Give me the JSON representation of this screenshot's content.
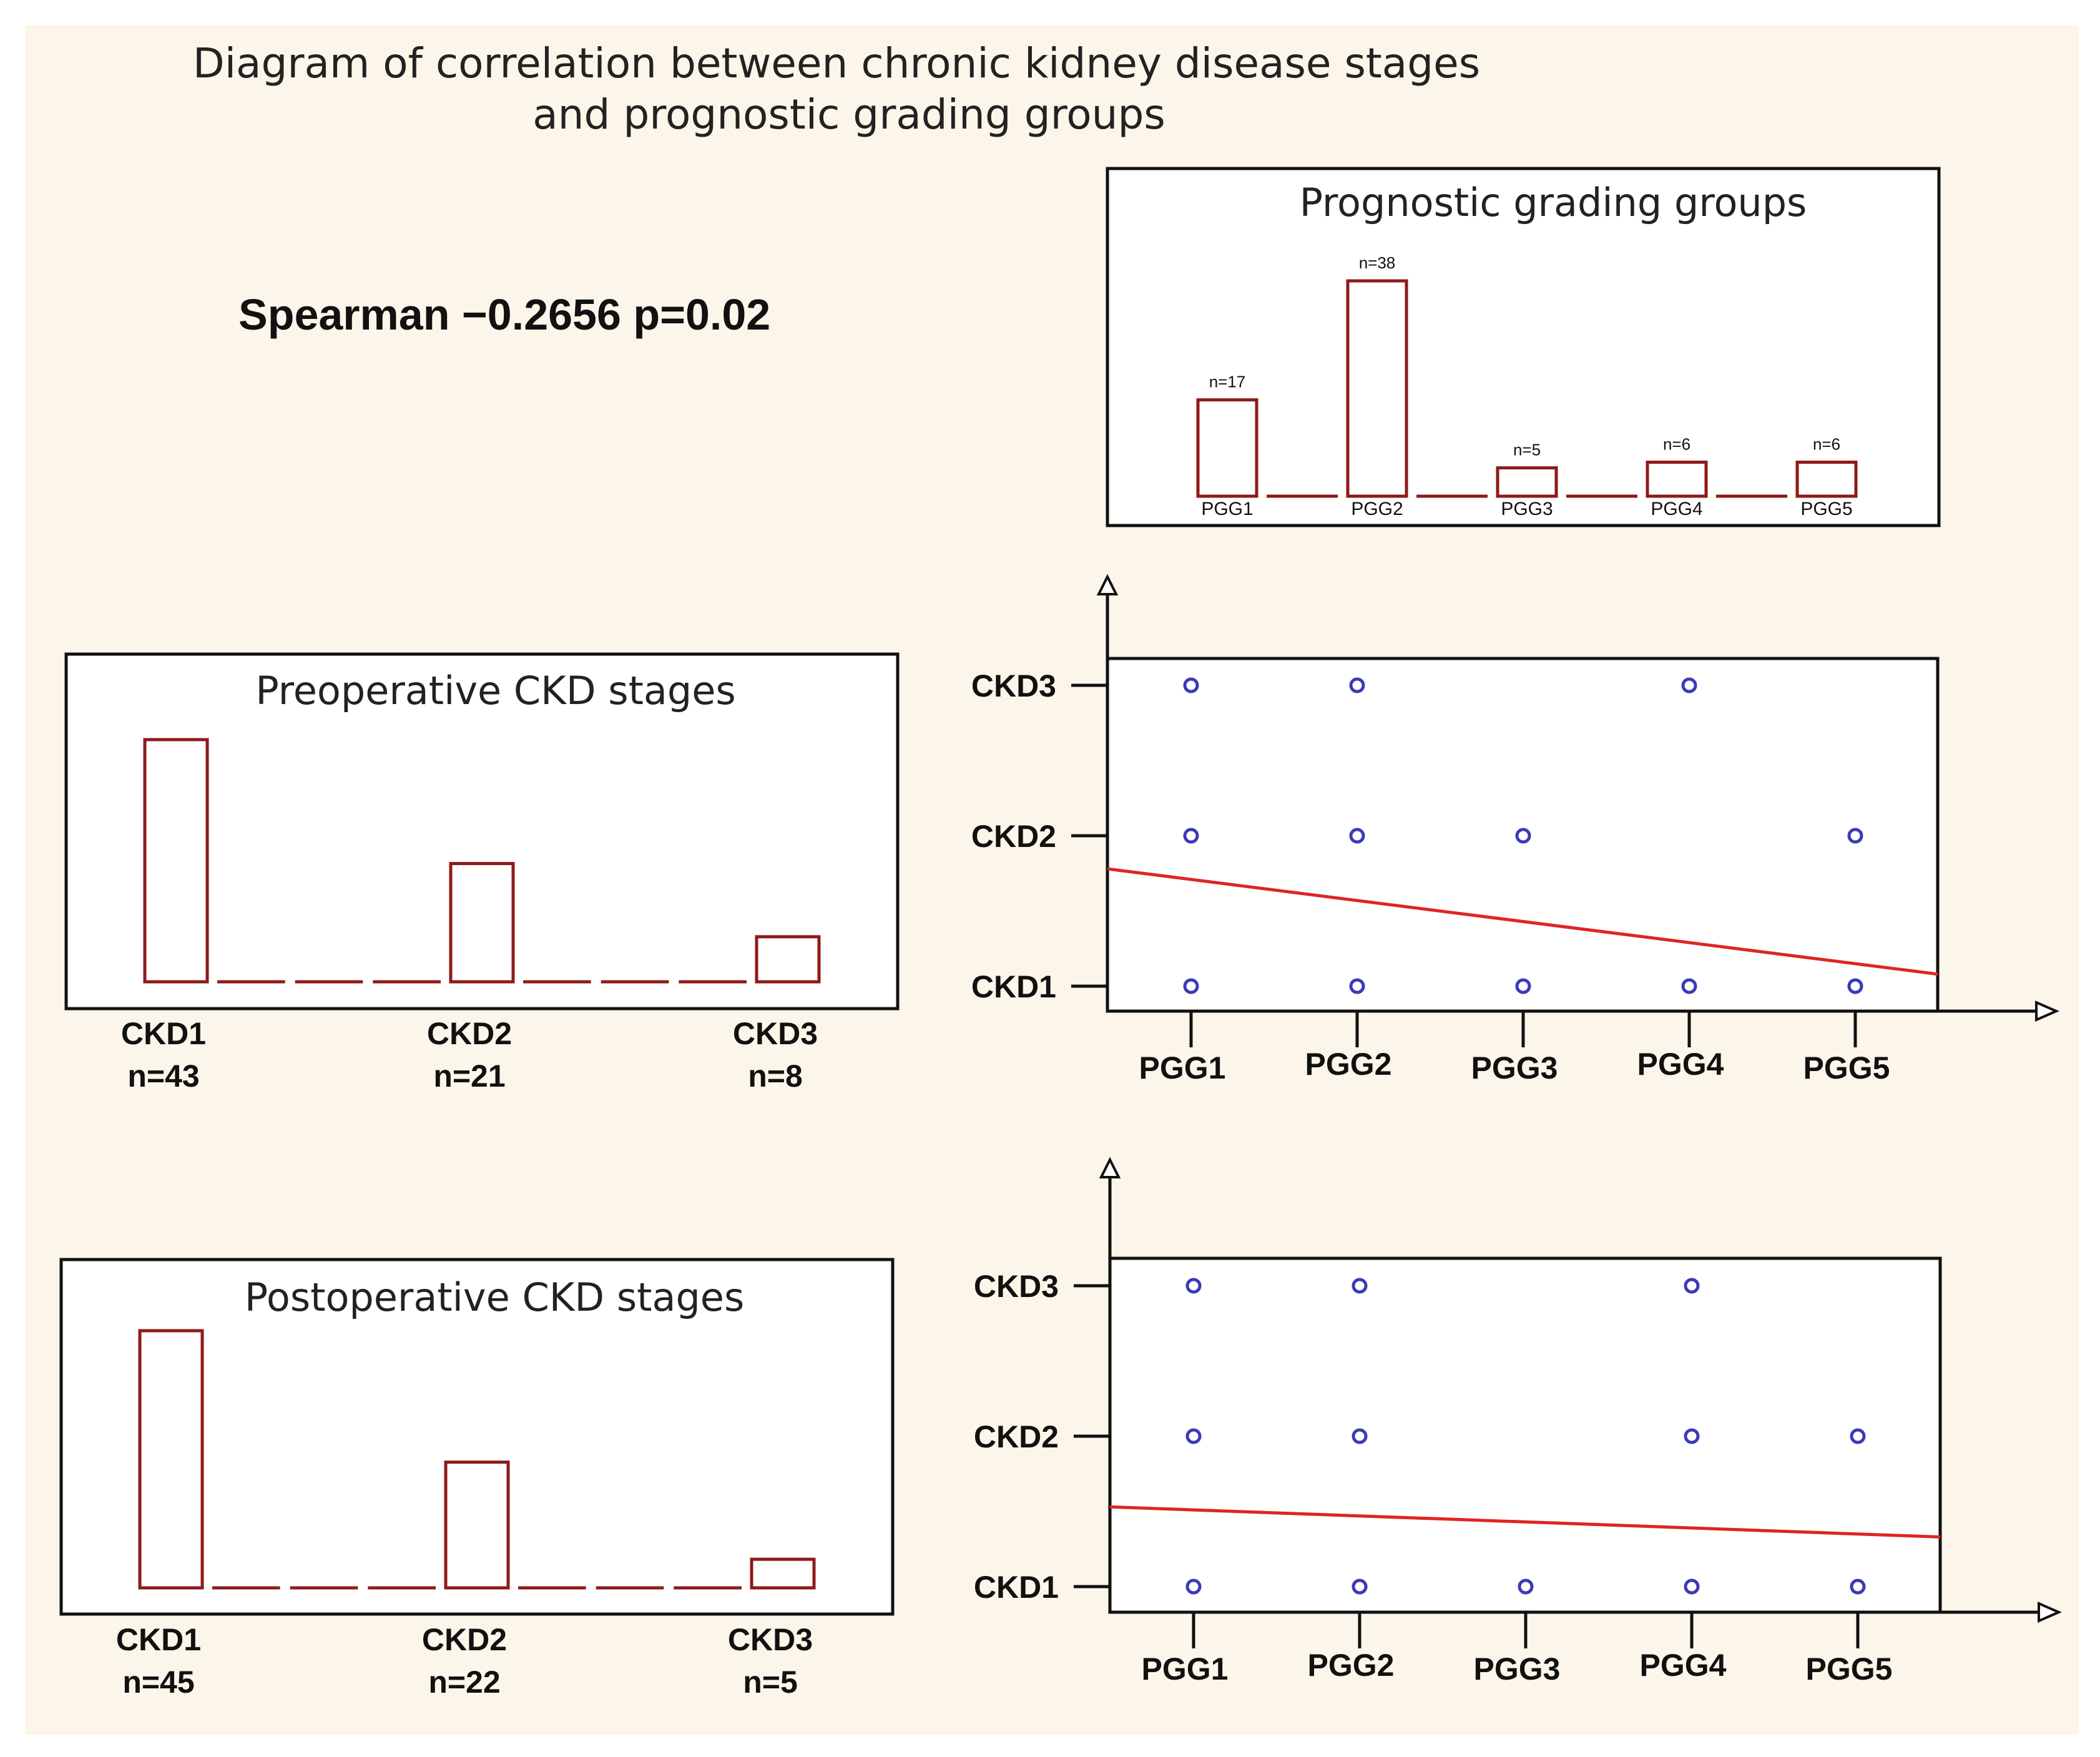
{
  "title_line1": "Diagram of correlation between chronic kidney disease stages",
  "title_line2": "and prognostic grading groups",
  "stat_text": "Spearman −0.2656 p=0.02",
  "colors": {
    "background": "#fbf6e9",
    "panel": "#ffffff",
    "bar": "#8e1a1a",
    "point": "#3a3ab8",
    "trend": "#e02424",
    "axis": "#111111"
  },
  "chart_data": [
    {
      "id": "pgg",
      "type": "bar",
      "title": "Prognostic grading groups",
      "categories": [
        "PGG1",
        "PGG2",
        "PGG3",
        "PGG4",
        "PGG5"
      ],
      "value_labels": [
        "n=17",
        "n=38",
        "n=5",
        "n=6",
        "n=6"
      ],
      "values": [
        17,
        38,
        5,
        6,
        6
      ]
    },
    {
      "id": "pre",
      "type": "bar",
      "title": "Preoperative CKD stages",
      "categories": [
        "CKD1",
        "CKD2",
        "CKD3"
      ],
      "value_labels": [
        "n=43",
        "n=21",
        "n=8"
      ],
      "values": [
        43,
        21,
        8
      ]
    },
    {
      "id": "post",
      "type": "bar",
      "title": "Postoperative CKD stages",
      "categories": [
        "CKD1",
        "CKD2",
        "CKD3"
      ],
      "value_labels": [
        "n=45",
        "n=22",
        "n=5"
      ],
      "values": [
        45,
        22,
        5
      ]
    },
    {
      "id": "scatter-pre",
      "type": "scatter",
      "x_categories": [
        "PGG1",
        "PGG2",
        "PGG3",
        "PGG4",
        "PGG5"
      ],
      "y_categories": [
        "CKD1",
        "CKD2",
        "CKD3"
      ],
      "points": [
        [
          1,
          3
        ],
        [
          2,
          3
        ],
        [
          4,
          3
        ],
        [
          1,
          2
        ],
        [
          2,
          2
        ],
        [
          3,
          2
        ],
        [
          5,
          2
        ],
        [
          1,
          1
        ],
        [
          2,
          1
        ],
        [
          3,
          1
        ],
        [
          4,
          1
        ],
        [
          5,
          1
        ]
      ],
      "trend": {
        "x_start": 0.5,
        "y_start": 1.78,
        "x_end": 5.5,
        "y_end": 1.08
      }
    },
    {
      "id": "scatter-post",
      "type": "scatter",
      "x_categories": [
        "PGG1",
        "PGG2",
        "PGG3",
        "PGG4",
        "PGG5"
      ],
      "y_categories": [
        "CKD1",
        "CKD2",
        "CKD3"
      ],
      "points": [
        [
          1,
          3
        ],
        [
          2,
          3
        ],
        [
          4,
          3
        ],
        [
          1,
          2
        ],
        [
          2,
          2
        ],
        [
          4,
          2
        ],
        [
          5,
          2
        ],
        [
          1,
          1
        ],
        [
          2,
          1
        ],
        [
          3,
          1
        ],
        [
          4,
          1
        ],
        [
          5,
          1
        ]
      ],
      "trend": {
        "x_start": 0.5,
        "y_start": 1.53,
        "x_end": 5.5,
        "y_end": 1.33
      }
    }
  ]
}
